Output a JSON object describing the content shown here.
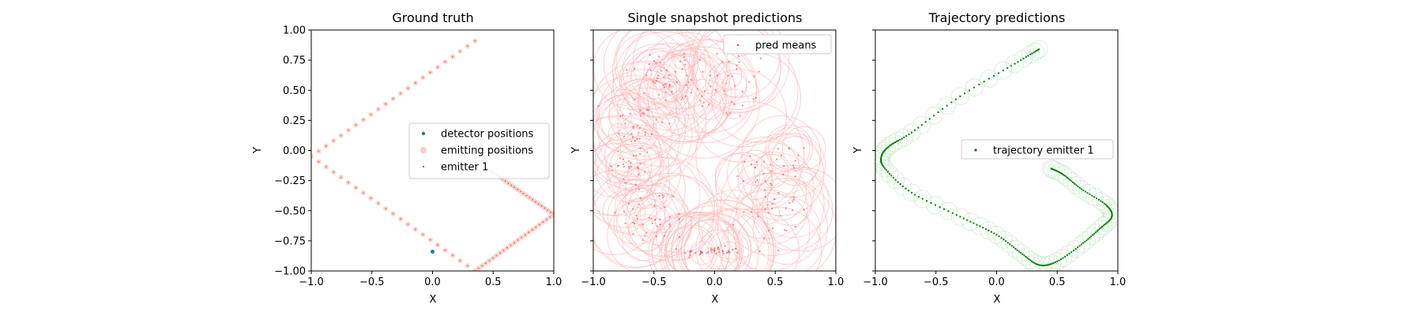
{
  "chart_data": [
    {
      "type": "scatter",
      "title": "Ground truth",
      "xlabel": "X",
      "ylabel": "Y",
      "xlim": [
        -1.0,
        1.0
      ],
      "ylim": [
        -1.0,
        1.0
      ],
      "xticks": [
        "−1.0",
        "−0.5",
        "0.0",
        "0.5",
        "1.0"
      ],
      "yticks": [
        "1.00",
        "0.75",
        "0.50",
        "0.25",
        "0.00",
        "−0.25",
        "−0.50",
        "−0.75",
        "−1.00"
      ],
      "legend_position": "center-right",
      "colors": {
        "detector": "#1f77b4",
        "emitting": "#ffb3b3",
        "emitter": "#d2691e"
      },
      "series": [
        {
          "name": "detector positions",
          "kind": "point",
          "x": [
            0.0
          ],
          "y": [
            -0.84
          ]
        },
        {
          "name": "emitting positions",
          "kind": "path",
          "vertices": [
            [
              0.35,
              0.91
            ],
            [
              -1.0,
              -0.05
            ],
            [
              0.35,
              -1.0
            ],
            [
              1.0,
              -0.53
            ],
            [
              0.45,
              -0.15
            ]
          ]
        },
        {
          "name": "emitter 1",
          "kind": "path",
          "vertices": [
            [
              0.35,
              0.91
            ],
            [
              -1.0,
              -0.05
            ],
            [
              0.35,
              -1.0
            ],
            [
              1.0,
              -0.53
            ],
            [
              0.45,
              -0.15
            ]
          ]
        }
      ]
    },
    {
      "type": "scatter",
      "title": "Single snapshot predictions",
      "xlabel": "X",
      "ylabel": "Y",
      "xlim": [
        -1.0,
        1.0
      ],
      "ylim": [
        -1.0,
        1.0
      ],
      "xticks": [
        "−1.0",
        "−0.5",
        "0.0",
        "0.5",
        "1.0"
      ],
      "legend_position": "upper-right",
      "colors": {
        "points": "#ff4d4d",
        "circles": "#ffb8b8"
      },
      "series": [
        {
          "name": "pred means",
          "kind": "scatter",
          "clusters": [
            {
              "cx": -0.45,
              "cy": 0.62,
              "sx": 0.15,
              "sy": 0.12,
              "n": 35
            },
            {
              "cx": 0.05,
              "cy": 0.55,
              "sx": 0.22,
              "sy": 0.15,
              "n": 50
            },
            {
              "cx": -0.65,
              "cy": 0.2,
              "sx": 0.12,
              "sy": 0.15,
              "n": 35
            },
            {
              "cx": -0.7,
              "cy": -0.15,
              "sx": 0.1,
              "sy": 0.1,
              "n": 25
            },
            {
              "cx": -0.5,
              "cy": -0.55,
              "sx": 0.15,
              "sy": 0.12,
              "n": 40
            },
            {
              "cx": -0.02,
              "cy": -0.84,
              "sx": 0.12,
              "sy": 0.02,
              "n": 45
            },
            {
              "cx": 0.45,
              "cy": -0.45,
              "sx": 0.12,
              "sy": 0.2,
              "n": 40
            },
            {
              "cx": 0.55,
              "cy": -0.1,
              "sx": 0.12,
              "sy": 0.12,
              "n": 20
            }
          ]
        }
      ]
    },
    {
      "type": "scatter",
      "title": "Trajectory predictions",
      "xlabel": "X",
      "ylabel": "Y",
      "xlim": [
        -1.0,
        1.0
      ],
      "ylim": [
        -1.0,
        1.0
      ],
      "xticks": [
        "−1.0",
        "−0.5",
        "0.0",
        "0.5",
        "1.0"
      ],
      "legend_position": "center-right",
      "colors": {
        "points": "#008000",
        "circles": "#b8e6b8"
      },
      "series": [
        {
          "name": "trajectory emitter 1",
          "kind": "path",
          "vertices": [
            [
              0.35,
              0.84
            ],
            [
              0.15,
              0.72
            ],
            [
              -0.3,
              0.45
            ],
            [
              -0.7,
              0.15
            ],
            [
              -0.88,
              0.04
            ],
            [
              -0.95,
              -0.05
            ],
            [
              -0.92,
              -0.15
            ],
            [
              -0.7,
              -0.35
            ],
            [
              -0.3,
              -0.55
            ],
            [
              0.0,
              -0.7
            ],
            [
              0.2,
              -0.85
            ],
            [
              0.35,
              -0.95
            ],
            [
              0.5,
              -0.92
            ],
            [
              0.7,
              -0.78
            ],
            [
              0.85,
              -0.65
            ],
            [
              0.95,
              -0.55
            ],
            [
              0.9,
              -0.45
            ],
            [
              0.7,
              -0.32
            ],
            [
              0.55,
              -0.2
            ],
            [
              0.45,
              -0.15
            ]
          ]
        }
      ]
    }
  ]
}
